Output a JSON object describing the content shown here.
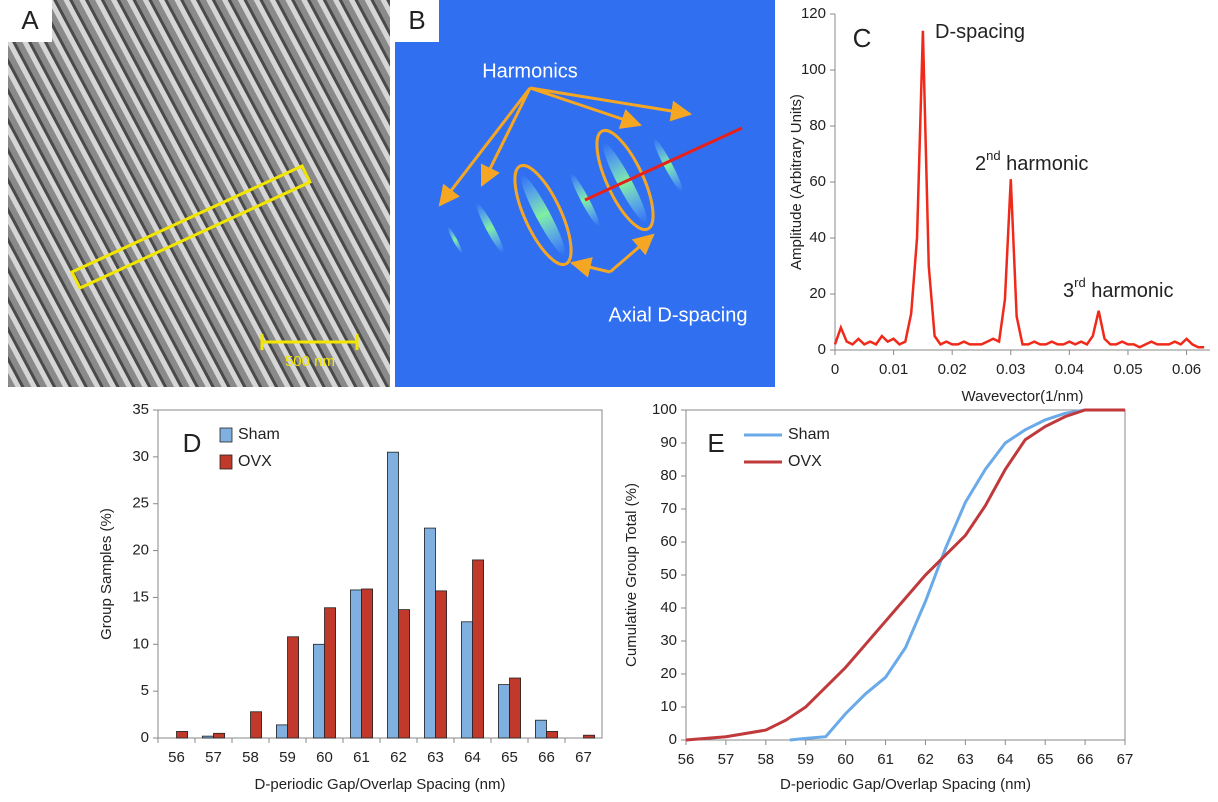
{
  "panel_a": {
    "label": "A",
    "scale_bar": "500 nm"
  },
  "panel_b": {
    "label": "B",
    "harmonics": "Harmonics",
    "axial": "Axial D-spacing"
  },
  "chart_data": [
    {
      "type": "line",
      "panel_label": "C",
      "x": [
        0,
        0.001,
        0.002,
        0.003,
        0.004,
        0.005,
        0.006,
        0.007,
        0.008,
        0.009,
        0.01,
        0.011,
        0.012,
        0.013,
        0.014,
        0.015,
        0.016,
        0.017,
        0.018,
        0.019,
        0.02,
        0.021,
        0.022,
        0.023,
        0.024,
        0.025,
        0.026,
        0.027,
        0.028,
        0.029,
        0.03,
        0.031,
        0.032,
        0.033,
        0.034,
        0.035,
        0.036,
        0.037,
        0.038,
        0.039,
        0.04,
        0.041,
        0.042,
        0.043,
        0.044,
        0.045,
        0.046,
        0.047,
        0.048,
        0.049,
        0.05,
        0.051,
        0.052,
        0.053,
        0.054,
        0.055,
        0.056,
        0.057,
        0.058,
        0.059,
        0.06,
        0.061,
        0.062,
        0.063
      ],
      "values": [
        2,
        8,
        3,
        2,
        4,
        2,
        3,
        2,
        5,
        3,
        4,
        2,
        3,
        13,
        40,
        114,
        30,
        5,
        2,
        3,
        2,
        2,
        3,
        2,
        2,
        2,
        3,
        4,
        3,
        18,
        61,
        12,
        2,
        2,
        3,
        2,
        2,
        3,
        2,
        2,
        3,
        2,
        3,
        2,
        5,
        14,
        4,
        2,
        2,
        3,
        2,
        2,
        1,
        2,
        3,
        2,
        2,
        2,
        3,
        2,
        4,
        2,
        1,
        1
      ],
      "color": "#f02a1a",
      "xlim": [
        0,
        0.064
      ],
      "xticks": [
        0,
        0.01,
        0.02,
        0.03,
        0.04,
        0.05,
        0.06
      ],
      "ylim": [
        0,
        120
      ],
      "yticks": [
        0,
        20,
        40,
        60,
        80,
        100,
        120
      ],
      "xlabel": "Wavevector(1/nm)",
      "ylabel": "Amplitude (Arbitrary Units)",
      "annotations": [
        {
          "text": "D-spacing"
        },
        {
          "text": "2",
          "sup": "nd",
          "rest": " harmonic"
        },
        {
          "text": "3",
          "sup": "rd",
          "rest": " harmonic"
        }
      ]
    },
    {
      "type": "bar",
      "panel_label": "D",
      "categories": [
        "56",
        "57",
        "58",
        "59",
        "60",
        "61",
        "62",
        "63",
        "64",
        "65",
        "66",
        "67"
      ],
      "series": [
        {
          "name": "Sham",
          "color": "#7fb0e0",
          "values": [
            0,
            0.2,
            0,
            1.4,
            10,
            15.8,
            30.5,
            22.4,
            12.4,
            5.7,
            1.9,
            0
          ]
        },
        {
          "name": "OVX",
          "color": "#c0392b",
          "values": [
            0.7,
            0.5,
            2.8,
            10.8,
            13.9,
            15.9,
            13.7,
            15.7,
            19,
            6.4,
            0.7,
            0.3
          ]
        }
      ],
      "ylim": [
        0,
        35
      ],
      "yticks": [
        0,
        5,
        10,
        15,
        20,
        25,
        30,
        35
      ],
      "xlabel": "D-periodic Gap/Overlap Spacing (nm)",
      "ylabel": "Group Samples (%)",
      "legend": "top-left"
    },
    {
      "type": "line",
      "panel_label": "E",
      "series": [
        {
          "name": "Sham",
          "color": "#6aaae8",
          "x": [
            58.6,
            59,
            59.5,
            60,
            60.5,
            61,
            61.5,
            62,
            62.5,
            63,
            63.5,
            64,
            64.5,
            65,
            65.5,
            66,
            67
          ],
          "values": [
            0,
            0.5,
            1,
            8,
            14,
            19,
            28,
            42,
            58,
            72,
            82,
            90,
            94,
            97,
            99,
            100,
            100
          ]
        },
        {
          "name": "OVX",
          "color": "#c0393b",
          "x": [
            56,
            57,
            58,
            58.5,
            59,
            59.5,
            60,
            60.5,
            61,
            61.5,
            62,
            62.5,
            63,
            63.5,
            64,
            64.5,
            65,
            65.5,
            66,
            67
          ],
          "values": [
            0,
            1,
            3,
            6,
            10,
            16,
            22,
            29,
            36,
            43,
            50,
            56,
            62,
            71,
            82,
            91,
            95,
            98,
            100,
            100
          ]
        }
      ],
      "xlim": [
        56,
        67
      ],
      "xticks": [
        56,
        57,
        58,
        59,
        60,
        61,
        62,
        63,
        64,
        65,
        66,
        67
      ],
      "ylim": [
        0,
        100
      ],
      "yticks": [
        0,
        10,
        20,
        30,
        40,
        50,
        60,
        70,
        80,
        90,
        100
      ],
      "xlabel": "D-periodic Gap/Overlap Spacing (nm)",
      "ylabel": "Cumulative Group Total (%)",
      "legend": "top-left"
    }
  ]
}
